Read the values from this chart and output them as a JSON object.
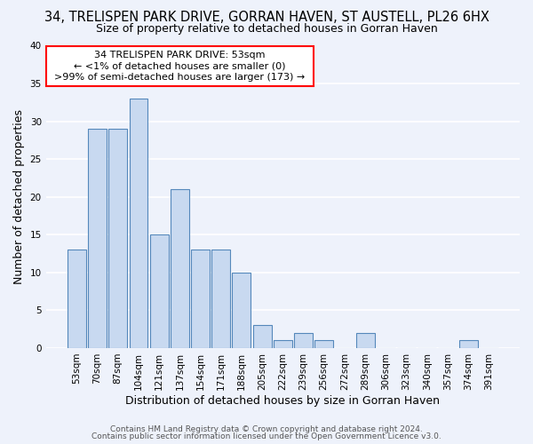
{
  "title": "34, TRELISPEN PARK DRIVE, GORRAN HAVEN, ST AUSTELL, PL26 6HX",
  "subtitle": "Size of property relative to detached houses in Gorran Haven",
  "xlabel": "Distribution of detached houses by size in Gorran Haven",
  "ylabel": "Number of detached properties",
  "bin_labels": [
    "53sqm",
    "70sqm",
    "87sqm",
    "104sqm",
    "121sqm",
    "137sqm",
    "154sqm",
    "171sqm",
    "188sqm",
    "205sqm",
    "222sqm",
    "239sqm",
    "256sqm",
    "272sqm",
    "289sqm",
    "306sqm",
    "323sqm",
    "340sqm",
    "357sqm",
    "374sqm",
    "391sqm"
  ],
  "bar_heights": [
    13,
    29,
    29,
    33,
    15,
    21,
    13,
    13,
    10,
    3,
    1,
    2,
    1,
    0,
    2,
    0,
    0,
    0,
    0,
    1,
    0
  ],
  "bar_color": "#c8d9f0",
  "bar_edge_color": "#5588bb",
  "ylim": [
    0,
    40
  ],
  "yticks": [
    0,
    5,
    10,
    15,
    20,
    25,
    30,
    35,
    40
  ],
  "annotation_text_line1": "34 TRELISPEN PARK DRIVE: 53sqm",
  "annotation_text_line2": "← <1% of detached houses are smaller (0)",
  "annotation_text_line3": ">99% of semi-detached houses are larger (173) →",
  "footer_line1": "Contains HM Land Registry data © Crown copyright and database right 2024.",
  "footer_line2": "Contains public sector information licensed under the Open Government Licence v3.0.",
  "background_color": "#eef2fb",
  "grid_color": "#ffffff",
  "title_fontsize": 10.5,
  "subtitle_fontsize": 9,
  "axis_label_fontsize": 9,
  "tick_fontsize": 7.5,
  "annotation_fontsize": 8,
  "footer_fontsize": 6.5
}
